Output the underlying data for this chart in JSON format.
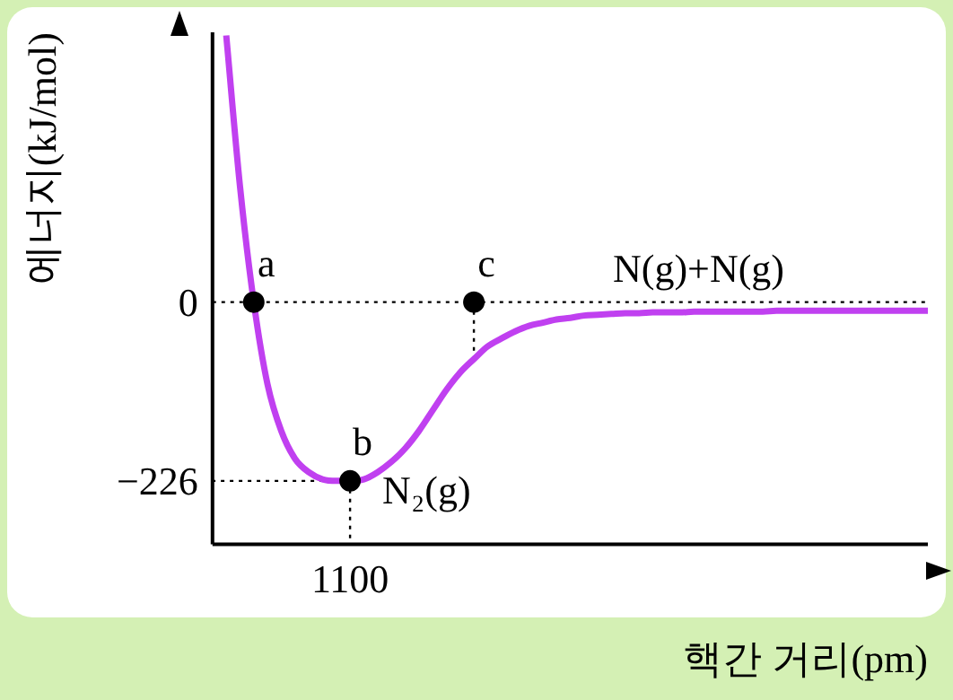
{
  "chart_data": {
    "type": "line",
    "xlabel": "핵간 거리(pm)",
    "ylabel": "에너지(kJ/mol)",
    "categories": [
      null,
      null,
      null,
      null,
      null,
      null,
      null,
      null,
      null,
      null,
      "1100",
      null,
      null,
      null,
      null,
      null,
      null,
      null,
      null,
      null,
      null,
      null,
      null,
      null,
      null,
      null,
      null,
      null,
      null,
      null,
      null,
      null,
      null,
      null,
      null,
      null,
      null,
      null,
      null,
      null,
      null,
      null,
      null,
      null,
      null,
      null,
      null,
      null,
      null,
      null,
      null,
      null,
      null
    ],
    "series": [
      {
        "color": "#c040f0",
        "marker": "none",
        "values": [
          null,
          337,
          146,
          0,
          -104,
          -163,
          -198,
          -215,
          -224,
          -226,
          -226,
          -224,
          -215,
          -202,
          -185,
          -163,
          -137,
          -111,
          -89,
          -72,
          -56,
          -46,
          -37,
          -30,
          -26,
          -22,
          -20,
          -17,
          -16,
          -15,
          -14,
          -14,
          -13,
          -13,
          -13,
          -12,
          -12,
          -12,
          -12,
          -12,
          -12,
          -11,
          -11,
          -11,
          -11,
          -11,
          -11,
          -11,
          -11,
          -11,
          -11,
          -11,
          -11
        ]
      },
      {
        "type": "scatter",
        "color": "#000000",
        "marker": "circle",
        "values": [
          null,
          null,
          null,
          0,
          null,
          null,
          null,
          null,
          null,
          null,
          -226,
          null,
          null,
          null,
          null,
          null,
          null,
          null,
          null,
          0,
          null,
          null,
          null,
          null,
          null,
          null,
          null,
          null,
          null,
          null,
          null,
          null,
          null,
          null,
          null,
          null,
          null,
          null,
          null,
          null,
          null,
          null,
          null,
          null,
          null,
          null,
          null,
          null,
          null,
          null,
          null,
          null,
          null
        ],
        "value_labels": [
          null,
          null,
          null,
          "a",
          null,
          null,
          null,
          null,
          null,
          null,
          "b",
          null,
          null,
          null,
          null,
          null,
          null,
          null,
          null,
          "c",
          null,
          null,
          null,
          null,
          null,
          null,
          null,
          null,
          null,
          null,
          null,
          null,
          null,
          null,
          null,
          null,
          null,
          null,
          null,
          null,
          null,
          null,
          null,
          null,
          null,
          null,
          null,
          null,
          null,
          null,
          null,
          null,
          null
        ]
      }
    ],
    "ylim": [
      -306,
      341
    ],
    "yticks": [
      0,
      {
        "value": -226,
        "label": "−226"
      }
    ],
    "ref_lines": [
      {
        "axis": "y",
        "value": 0,
        "line_style": "dotted",
        "color": "#000000"
      }
    ],
    "annotations": [
      "N(g)+N(g)",
      {
        "text": "N₂(g)",
        "x": "1100",
        "y": -226
      }
    ],
    "grid": false,
    "legend": false,
    "line_style": "solid"
  }
}
